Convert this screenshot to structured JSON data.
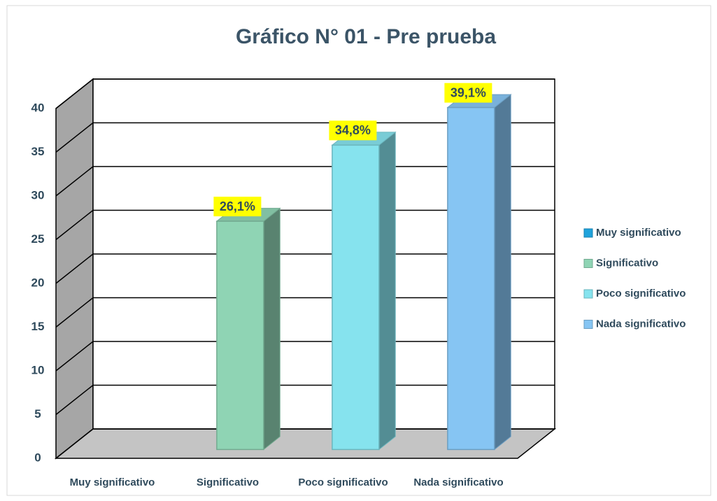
{
  "chart_data": {
    "type": "bar3d",
    "title": "Gráfico N° 01 - Pre prueba",
    "categories": [
      "Muy significativo",
      "Significativo",
      "Poco significativo",
      "Nada significativo"
    ],
    "values": [
      0,
      26.1,
      34.8,
      39.1
    ],
    "value_labels": [
      null,
      "26,1%",
      "34,8%",
      "39,1%"
    ],
    "colors": [
      "#1fa3dc",
      "#8fd4b4",
      "#86e3ee",
      "#86c5f3"
    ],
    "ylim": [
      0,
      40
    ],
    "yticks": [
      0,
      5,
      10,
      15,
      20,
      25,
      30,
      35,
      40
    ],
    "grid": true,
    "legend": "right"
  }
}
